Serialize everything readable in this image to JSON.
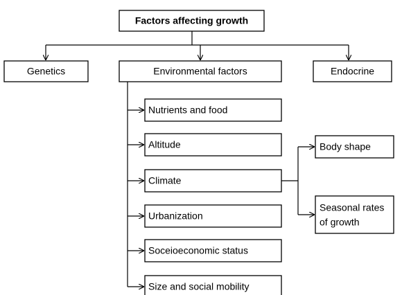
{
  "nodes": [
    {
      "label": "Factors affecting growth"
    },
    {
      "label": "Genetics"
    },
    {
      "label": "Environmental factors"
    },
    {
      "label": "Endocrine"
    },
    {
      "label": "Nutrients and food"
    },
    {
      "label": "Altitude"
    },
    {
      "label": "Climate"
    },
    {
      "label": "Urbanization"
    },
    {
      "label": "Soceioeconomic status"
    },
    {
      "label": "Size and social mobility"
    },
    {
      "label": "Body shape"
    },
    {
      "lines": [
        "Seasonal rates",
        "of growth"
      ]
    }
  ]
}
